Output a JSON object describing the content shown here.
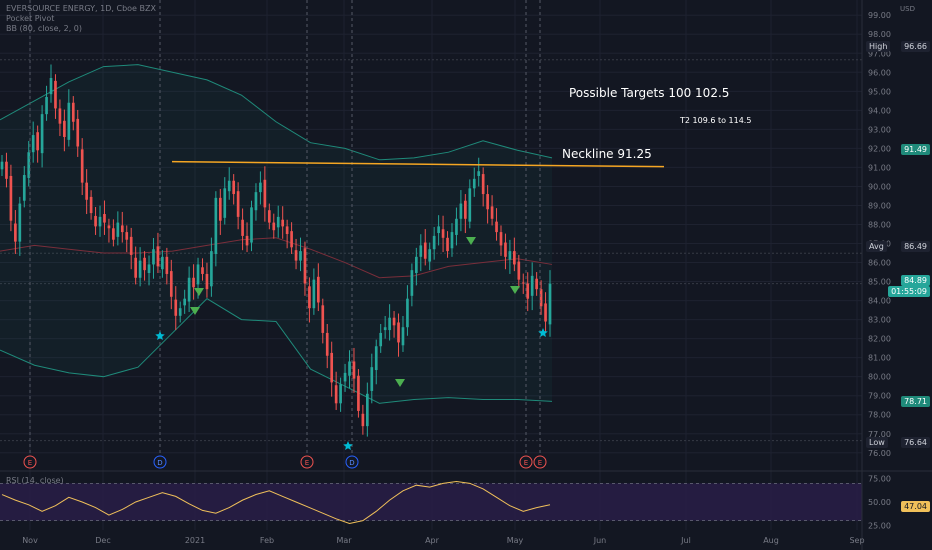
{
  "header": {
    "symbol_line": "EVERSOURCE ENERGY, 1D, Cboe BZX",
    "indicator_1": "Pocket Pivot",
    "indicator_2": "BB (80, close, 2, 0)",
    "rsi_label": "RSI (14, close)",
    "currency": "USD"
  },
  "annotations": {
    "targets": "Possible Targets  100   102.5",
    "t2": "T2 109.6 to 114.5",
    "neckline": "Neckline 91.25"
  },
  "price_tags": {
    "high_label": "High",
    "high_value": "96.66",
    "avg_label": "Avg",
    "avg_value": "86.49",
    "low_label": "Low",
    "low_value": "76.64",
    "bb_upper": "91.49",
    "last_price": "84.89",
    "countdown": "01:55:09",
    "bb_lower": "78.71",
    "rsi_value": "47.04"
  },
  "colors": {
    "background": "#131722",
    "up": "#26a69a",
    "down": "#ef5350",
    "bollinger": "#1f8a7a",
    "neckline": "#f5a623",
    "rsi": "#f0c05a",
    "rsi_band": "#2a1e4a",
    "marker_star": "#00bcd4",
    "marker_triangle": "#4caf50"
  },
  "chart_data": {
    "type": "candlestick",
    "x_tick_labels": [
      "Nov",
      "Dec",
      "2021",
      "Feb",
      "Mar",
      "Apr",
      "May",
      "Jun",
      "Jul",
      "Aug",
      "Sep"
    ],
    "y_tick_labels": [
      76.0,
      77.0,
      78.0,
      79.0,
      80.0,
      81.0,
      82.0,
      83.0,
      84.0,
      85.0,
      86.0,
      87.0,
      88.0,
      89.0,
      90.0,
      91.0,
      92.0,
      93.0,
      94.0,
      95.0,
      96.0,
      97.0,
      98.0,
      99.0
    ],
    "ylim": [
      75.2,
      99.8
    ],
    "closes": [
      91.3,
      90.4,
      88.2,
      87.1,
      89.1,
      90.6,
      91.8,
      92.7,
      91.9,
      93.8,
      94.7,
      95.7,
      94.1,
      93.3,
      92.6,
      94.4,
      93.4,
      92.1,
      90.2,
      89.3,
      88.6,
      87.9,
      88.4,
      88.1,
      87.8,
      87.2,
      88.1,
      87.6,
      87.2,
      86.4,
      85.2,
      86.1,
      85.6,
      85.9,
      86.7,
      85.8,
      86.3,
      85.4,
      84.2,
      83.2,
      83.6,
      84.1,
      85.2,
      84.7,
      85.9,
      85.4,
      84.6,
      86.6,
      89.4,
      88.2,
      89.9,
      90.3,
      89.6,
      88.4,
      87.4,
      86.9,
      88.9,
      89.7,
      90.2,
      88.9,
      88.1,
      87.7,
      88.4,
      87.9,
      87.5,
      86.8,
      86.1,
      86.6,
      84.9,
      83.6,
      85.1,
      83.9,
      82.3,
      81.1,
      79.7,
      78.6,
      79.6,
      80.2,
      80.8,
      79.9,
      78.2,
      77.4,
      79.1,
      80.5,
      81.6,
      82.3,
      82.6,
      83.1,
      82.7,
      81.8,
      82.6,
      84.1,
      85.6,
      86.3,
      86.9,
      86.2,
      86.7,
      87.4,
      87.9,
      87.3,
      86.6,
      87.6,
      88.3,
      89.1,
      88.3,
      89.9,
      90.4,
      90.8,
      89.6,
      88.8,
      88.3,
      87.6,
      86.9,
      86.3,
      86.6,
      85.9,
      85.1,
      84.9,
      84.1,
      85.3,
      84.6,
      83.7,
      82.9,
      84.89
    ],
    "series": [
      {
        "name": "BB (80, close, 2, 0)"
      },
      {
        "name": "RSI (14, close)"
      }
    ],
    "earnings_markers": [
      "E",
      "D",
      "E",
      "D",
      "E",
      "E"
    ],
    "bollinger_upper": [
      93.5,
      94.5,
      95.5,
      96.3,
      96.4,
      96.0,
      95.6,
      94.8,
      93.4,
      92.3,
      92.0,
      91.4,
      91.5,
      91.8,
      92.4,
      91.9,
      91.5
    ],
    "bollinger_lower": [
      81.4,
      80.6,
      80.2,
      80.0,
      80.5,
      82.3,
      84.1,
      83.0,
      82.9,
      80.4,
      79.5,
      78.6,
      78.8,
      78.9,
      78.8,
      78.8,
      78.7
    ],
    "bollinger_middle": [
      86.6,
      86.9,
      86.7,
      86.5,
      86.5,
      86.6,
      86.9,
      87.2,
      87.3,
      86.7,
      86.0,
      85.2,
      85.3,
      85.8,
      86.0,
      86.2,
      85.9
    ],
    "rsi_values": [
      58,
      52,
      47,
      40,
      46,
      55,
      50,
      44,
      36,
      42,
      50,
      55,
      60,
      56,
      48,
      41,
      38,
      44,
      52,
      58,
      62,
      56,
      50,
      44,
      38,
      32,
      27,
      30,
      40,
      52,
      62,
      68,
      66,
      70,
      72,
      70,
      64,
      55,
      46,
      40,
      44,
      47
    ],
    "rsi_bands": [
      30,
      70
    ],
    "rsi_ticks": [
      25,
      50,
      75
    ],
    "neckline": 91.25,
    "price_high": 96.66,
    "price_low": 76.64,
    "price_avg": 86.49,
    "last_price": 84.89
  }
}
